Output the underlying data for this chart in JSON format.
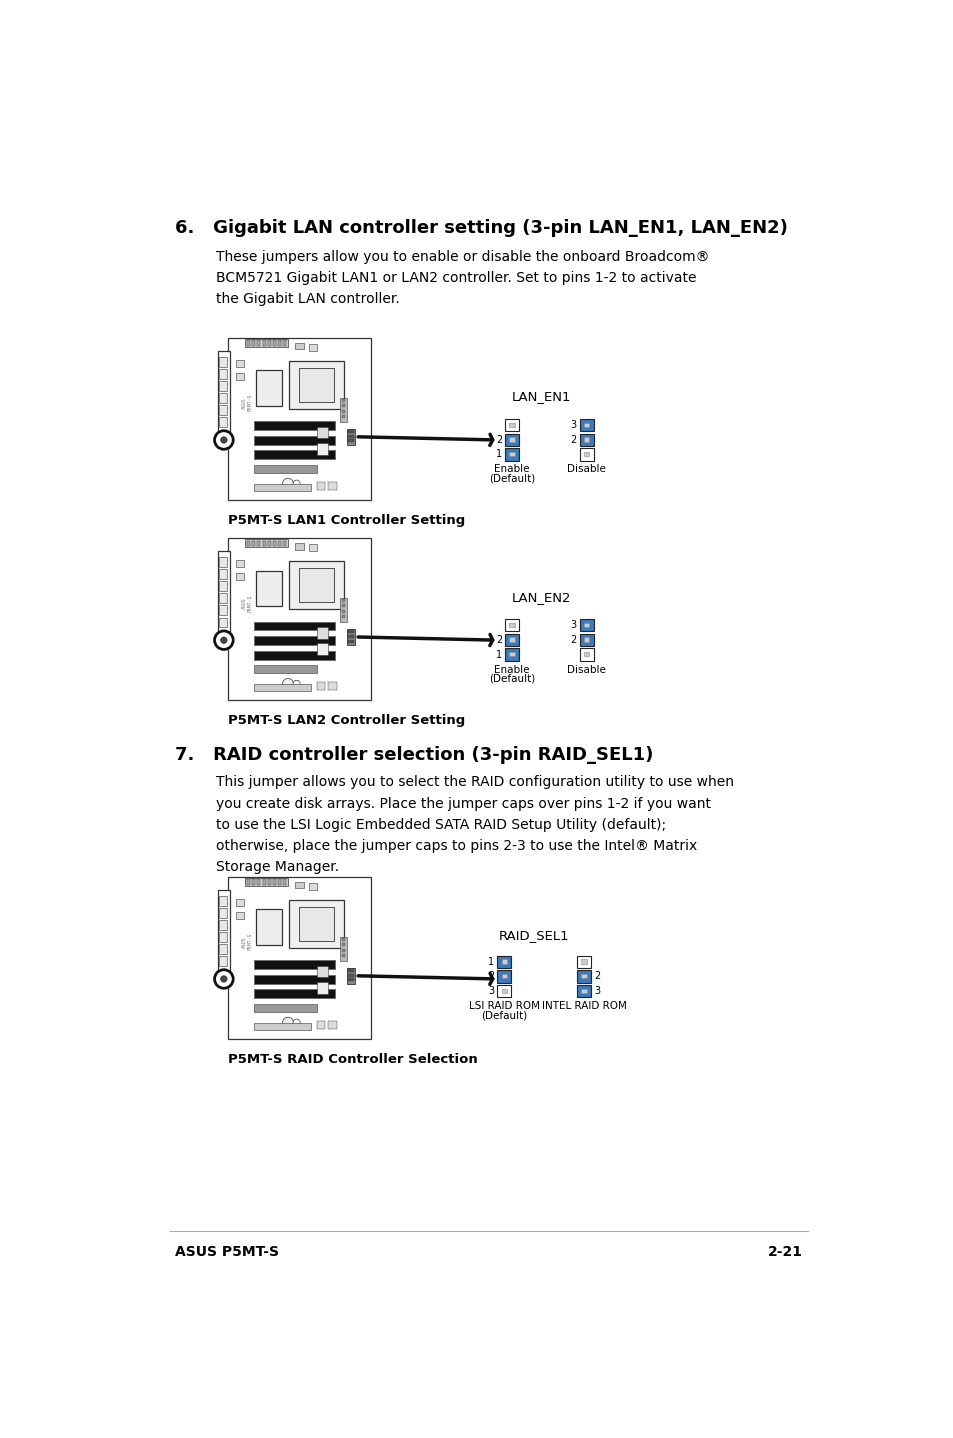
{
  "bg_color": "#ffffff",
  "text_color": "#000000",
  "title6": "6.   Gigabit LAN controller setting (3-pin LAN_EN1, LAN_EN2)",
  "body6": "These jumpers allow you to enable or disable the onboard Broadcom®\nBCM5721 Gigabit LAN1 or LAN2 controller. Set to pins 1-2 to activate\nthe Gigabit LAN controller.",
  "caption1": "P5MT-S LAN1 Controller Setting",
  "caption2": "P5MT-S LAN2 Controller Setting",
  "label_lan1": "LAN_EN1",
  "label_lan2": "LAN_EN2",
  "title7": "7.   RAID controller selection (3-pin RAID_SEL1)",
  "body7": "This jumper allows you to select the RAID configuration utility to use when\nyou create disk arrays. Place the jumper caps over pins 1-2 if you want\nto use the LSI Logic Embedded SATA RAID Setup Utility (default);\notherwise, place the jumper caps to pins 2-3 to use the Intel® Matrix\nStorage Manager.",
  "caption3": "P5MT-S RAID Controller Selection",
  "label_raid": "RAID_SEL1",
  "footer_left": "ASUS P5MT-S",
  "footer_right": "2-21",
  "blue_color": "#3a7abf",
  "dark_gray": "#333333"
}
